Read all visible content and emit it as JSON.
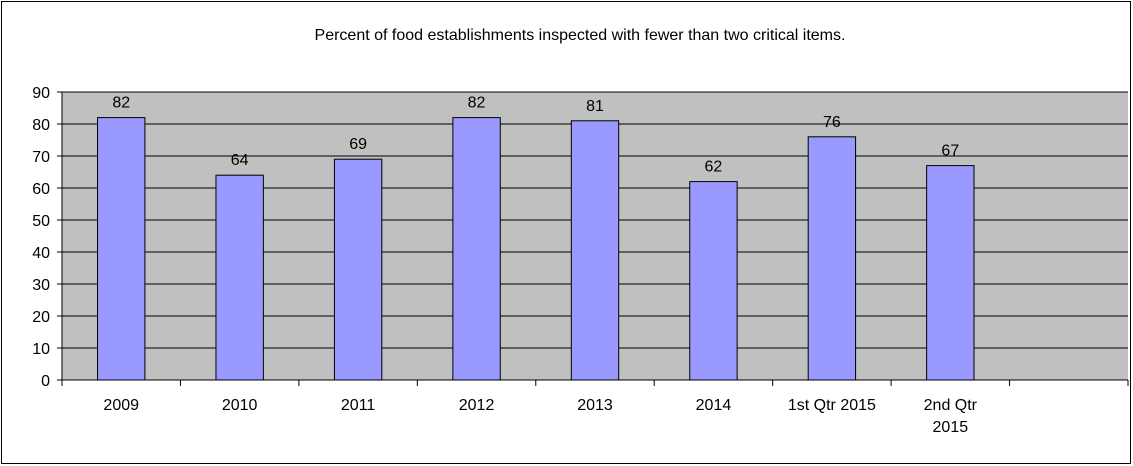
{
  "chart_data": {
    "type": "bar",
    "title": "Percent of food establishments inspected with fewer than two critical items.",
    "categories": [
      "2009",
      "2010",
      "2011",
      "2012",
      "2013",
      "2014",
      "1st Qtr 2015",
      "2nd Qtr 2015",
      null
    ],
    "values": [
      82,
      64,
      69,
      82,
      81,
      62,
      76,
      67,
      null
    ],
    "color": "#9999ff",
    "ylim": [
      0,
      90
    ],
    "yticks": [
      0,
      10,
      20,
      30,
      40,
      50,
      60,
      70,
      80,
      90
    ],
    "grid": true
  }
}
